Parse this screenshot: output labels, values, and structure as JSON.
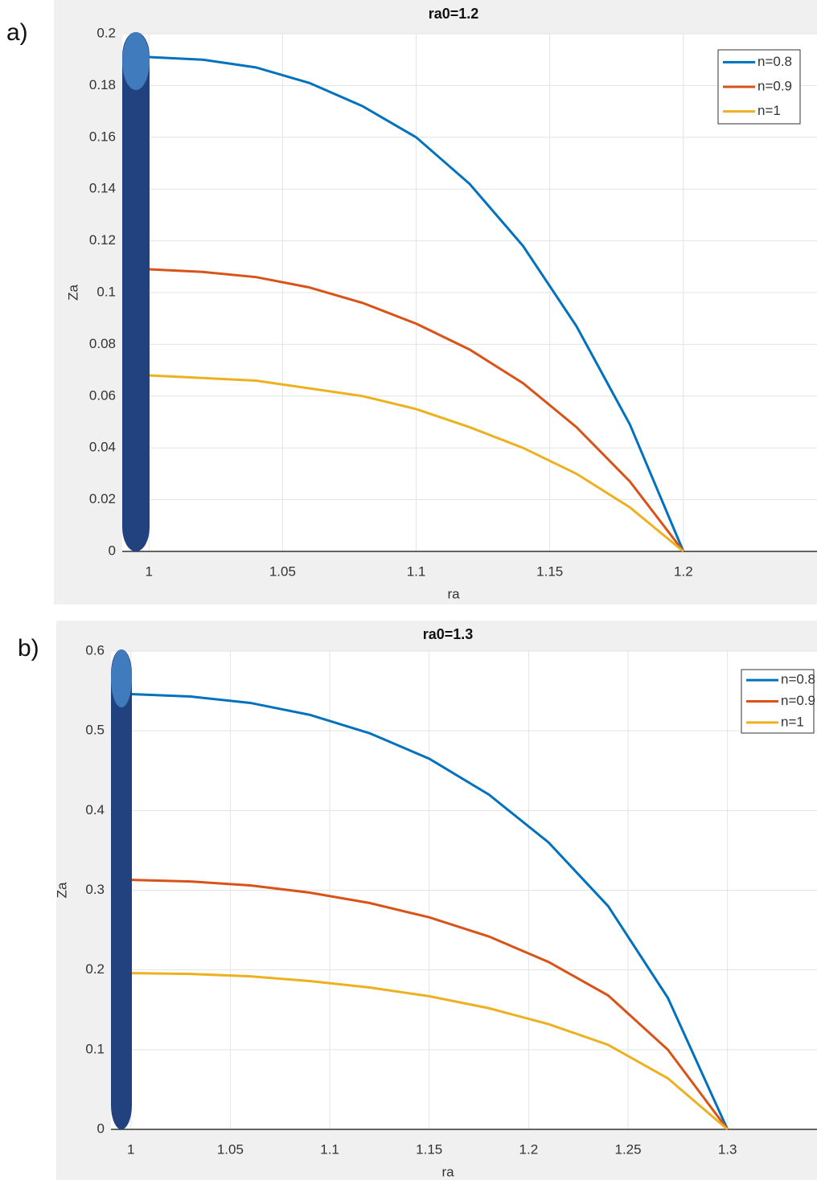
{
  "chart_data": [
    {
      "type": "line",
      "label": "a)",
      "title": "ra0=1.2",
      "xlabel": "ra",
      "ylabel": "Za",
      "x": [
        1.0,
        1.02,
        1.04,
        1.06,
        1.08,
        1.1,
        1.12,
        1.14,
        1.16,
        1.18,
        1.2
      ],
      "series": [
        {
          "name": "n=0.8",
          "color": "#0072bd",
          "values": [
            0.191,
            0.19,
            0.187,
            0.181,
            0.172,
            0.16,
            0.142,
            0.118,
            0.087,
            0.049,
            0
          ]
        },
        {
          "name": "n=0.9",
          "color": "#d95319",
          "values": [
            0.109,
            0.108,
            0.106,
            0.102,
            0.096,
            0.088,
            0.078,
            0.065,
            0.048,
            0.027,
            0
          ]
        },
        {
          "name": "n=1",
          "color": "#edb120",
          "values": [
            0.068,
            0.067,
            0.066,
            0.063,
            0.06,
            0.055,
            0.048,
            0.04,
            0.03,
            0.017,
            0
          ]
        }
      ],
      "xlim": [
        0.99,
        1.25
      ],
      "xticks": [
        1,
        1.05,
        1.1,
        1.15,
        1.2
      ],
      "ylim": [
        0,
        0.2
      ],
      "yticks": [
        0,
        0.02,
        0.04,
        0.06,
        0.08,
        0.1,
        0.12,
        0.14,
        0.16,
        0.18,
        0.2
      ],
      "grid": true,
      "legend": "top-right"
    },
    {
      "type": "line",
      "label": "b)",
      "title": "ra0=1.3",
      "xlabel": "ra",
      "ylabel": "Za",
      "x": [
        1.0,
        1.03,
        1.06,
        1.09,
        1.12,
        1.15,
        1.18,
        1.21,
        1.24,
        1.27,
        1.3
      ],
      "series": [
        {
          "name": "n=0.8",
          "color": "#0072bd",
          "values": [
            0.546,
            0.543,
            0.535,
            0.52,
            0.497,
            0.465,
            0.42,
            0.36,
            0.28,
            0.165,
            0
          ]
        },
        {
          "name": "n=0.9",
          "color": "#d95319",
          "values": [
            0.313,
            0.311,
            0.306,
            0.297,
            0.284,
            0.266,
            0.242,
            0.21,
            0.168,
            0.1,
            0
          ]
        },
        {
          "name": "n=1",
          "color": "#edb120",
          "values": [
            0.196,
            0.195,
            0.192,
            0.186,
            0.178,
            0.167,
            0.152,
            0.132,
            0.106,
            0.064,
            0
          ]
        }
      ],
      "xlim": [
        0.99,
        1.345
      ],
      "xticks": [
        1,
        1.05,
        1.1,
        1.15,
        1.2,
        1.25,
        1.3
      ],
      "ylim": [
        0,
        0.6
      ],
      "yticks": [
        0,
        0.1,
        0.2,
        0.3,
        0.4,
        0.5,
        0.6
      ],
      "grid": true,
      "legend": "top-right"
    }
  ]
}
